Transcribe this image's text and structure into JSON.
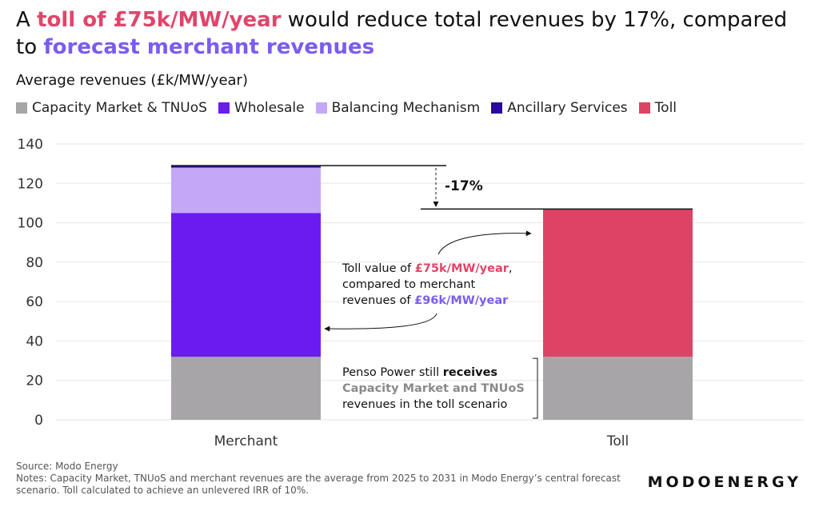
{
  "title": {
    "part1": "A ",
    "toll_highlight": "toll of £75k/MW/year",
    "part2": " would reduce total revenues by 17%, compared to ",
    "merchant_highlight": "forecast merchant revenues"
  },
  "subtitle": "Average revenues (£k/MW/year)",
  "colors": {
    "capacity": "#a7a5a8",
    "wholesale": "#6a1cf0",
    "balancing": "#c4a8f7",
    "ancillary": "#2a0a9c",
    "toll": "#de4265",
    "toll_text": "#e0456a",
    "merchant_text": "#7b5cf0",
    "grey_text": "#8a8a8a"
  },
  "chart_data": {
    "type": "bar",
    "stacked": true,
    "categories": [
      "Merchant",
      "Toll"
    ],
    "series": [
      {
        "name": "Capacity Market & TNUoS",
        "values": [
          32,
          32
        ]
      },
      {
        "name": "Wholesale",
        "values": [
          73,
          0
        ]
      },
      {
        "name": "Balancing Mechanism",
        "values": [
          23,
          0
        ]
      },
      {
        "name": "Ancillary Services",
        "values": [
          1,
          0
        ]
      },
      {
        "name": "Toll",
        "values": [
          0,
          75
        ]
      }
    ],
    "ylim": [
      0,
      140
    ],
    "yticks": [
      0,
      20,
      40,
      60,
      80,
      100,
      120,
      140
    ],
    "grid": true,
    "legend": "top-left",
    "annotations": {
      "change": "-17%",
      "toll_note": {
        "l1a": "Toll value of ",
        "l1b": "£75k/MW/year",
        "l1c": ",",
        "l2": "compared to merchant",
        "l3a": "revenues of ",
        "l3b": "£96k/MW/year"
      },
      "capacity_note": {
        "l1a": "Penso Power still ",
        "l1b": "receives",
        "l2": "Capacity Market and TNUoS",
        "l3": "revenues in the toll scenario"
      }
    }
  },
  "footer": {
    "source": "Source: Modo Energy",
    "notes": "Notes: Capacity Market, TNUoS and merchant revenues are the average from 2025 to 2031 in Modo Energy’s central forecast scenario. Toll calculated to achieve an unlevered IRR of 10%."
  },
  "brand": "MODOENERGY"
}
